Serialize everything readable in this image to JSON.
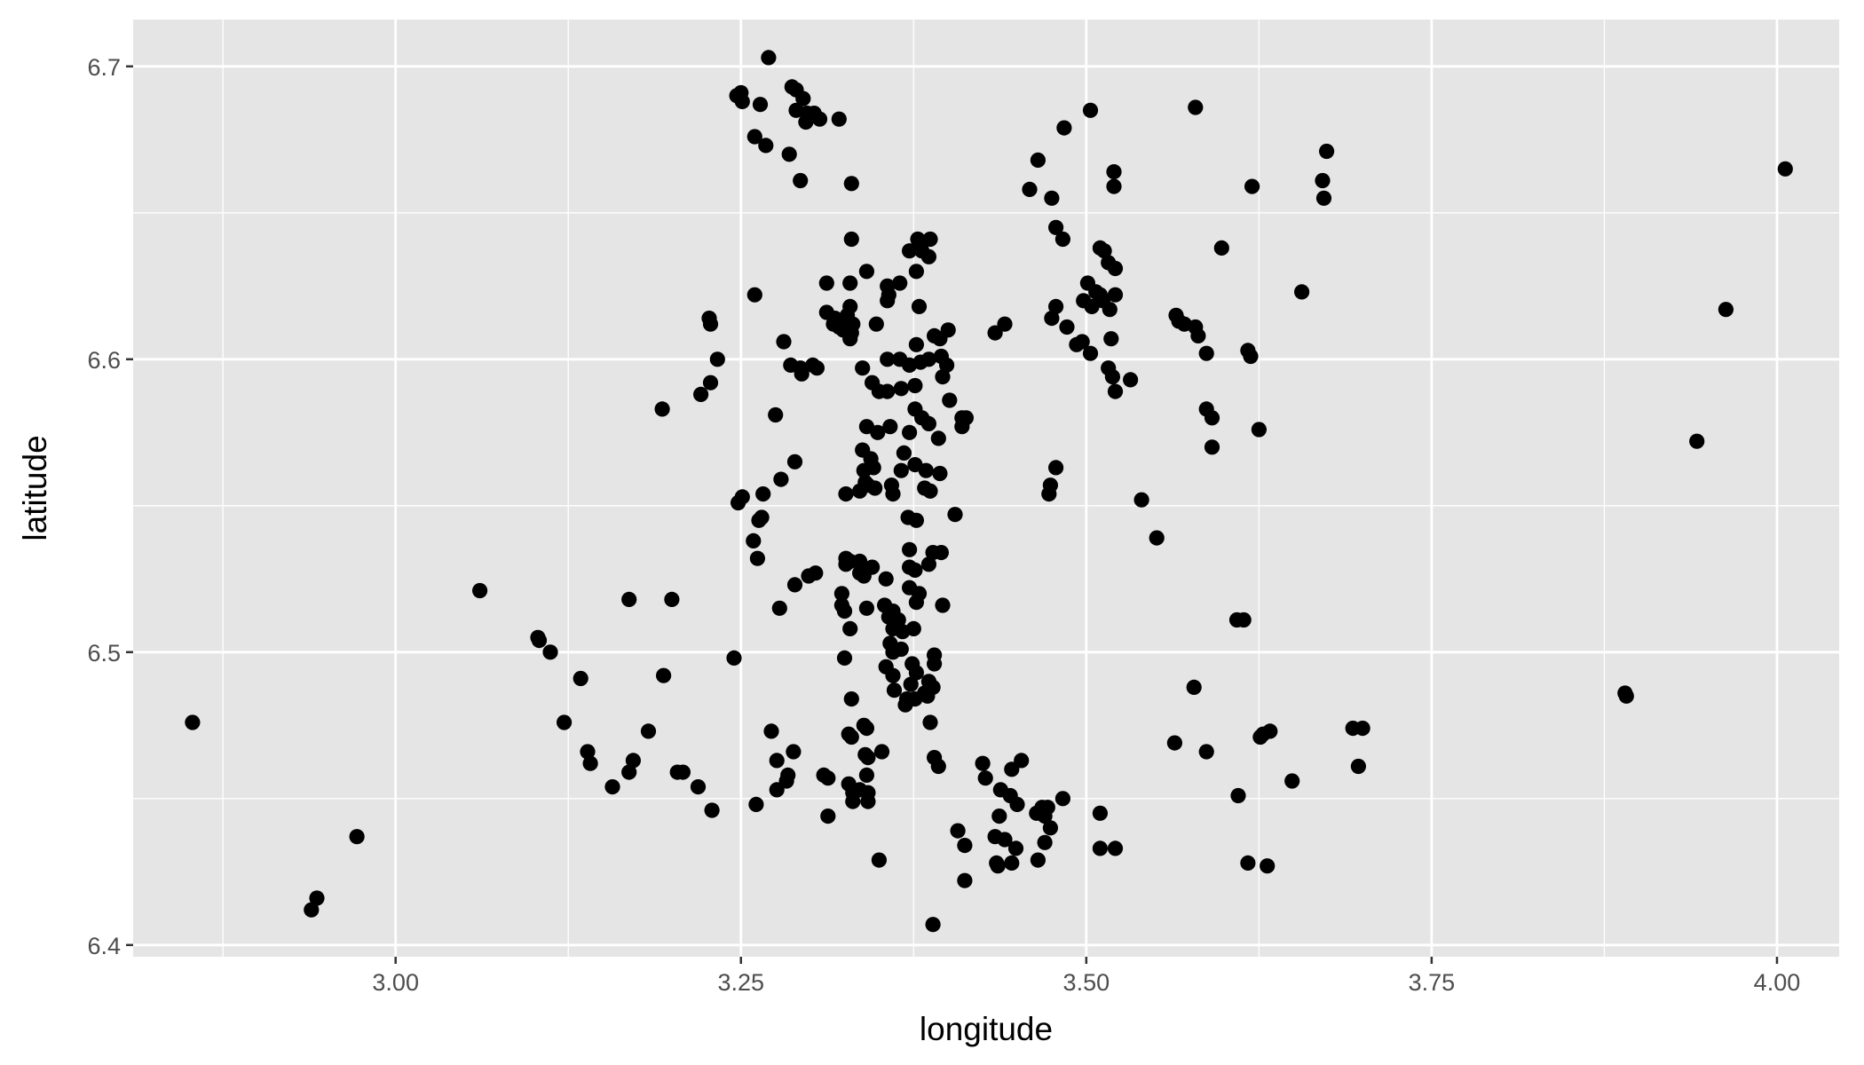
{
  "chart_data": {
    "type": "scatter",
    "title": "",
    "xlabel": "longitude",
    "ylabel": "latitude",
    "xlim": [
      2.81,
      4.045
    ],
    "ylim": [
      6.396,
      6.716
    ],
    "x_ticks": [
      3.0,
      3.25,
      3.5,
      3.75,
      4.0
    ],
    "x_tick_labels": [
      "3.00",
      "3.25",
      "3.50",
      "3.75",
      "4.00"
    ],
    "x_minor_ticks": [
      2.875,
      3.125,
      3.375,
      3.625,
      3.875
    ],
    "y_ticks": [
      6.4,
      6.5,
      6.6,
      6.7
    ],
    "y_tick_labels": [
      "6.4",
      "6.5",
      "6.6",
      "6.7"
    ],
    "y_minor_ticks": [
      6.45,
      6.55,
      6.65
    ],
    "grid": true,
    "legend": "none",
    "colors": {
      "panel": "#e5e5e5",
      "grid": "#ffffff",
      "point": "#000000",
      "tick": "#333333"
    },
    "points": [
      [
        3.27,
        6.703
      ],
      [
        3.247,
        6.69
      ],
      [
        3.25,
        6.691
      ],
      [
        3.251,
        6.688
      ],
      [
        3.264,
        6.687
      ],
      [
        3.287,
        6.693
      ],
      [
        3.29,
        6.692
      ],
      [
        3.295,
        6.689
      ],
      [
        3.29,
        6.685
      ],
      [
        3.298,
        6.684
      ],
      [
        3.303,
        6.684
      ],
      [
        3.307,
        6.682
      ],
      [
        3.297,
        6.681
      ],
      [
        3.321,
        6.682
      ],
      [
        3.26,
        6.676
      ],
      [
        3.268,
        6.673
      ],
      [
        3.285,
        6.67
      ],
      [
        3.293,
        6.661
      ],
      [
        3.33,
        6.66
      ],
      [
        3.503,
        6.685
      ],
      [
        3.579,
        6.686
      ],
      [
        3.484,
        6.679
      ],
      [
        3.674,
        6.671
      ],
      [
        3.465,
        6.668
      ],
      [
        3.52,
        6.664
      ],
      [
        3.671,
        6.661
      ],
      [
        3.62,
        6.659
      ],
      [
        3.52,
        6.659
      ],
      [
        3.459,
        6.658
      ],
      [
        3.475,
        6.655
      ],
      [
        3.672,
        6.655
      ],
      [
        4.006,
        6.665
      ],
      [
        3.33,
        6.641
      ],
      [
        3.378,
        6.641
      ],
      [
        3.387,
        6.641
      ],
      [
        3.372,
        6.637
      ],
      [
        3.381,
        6.637
      ],
      [
        3.386,
        6.635
      ],
      [
        3.478,
        6.645
      ],
      [
        3.483,
        6.641
      ],
      [
        3.51,
        6.638
      ],
      [
        3.513,
        6.637
      ],
      [
        3.516,
        6.633
      ],
      [
        3.521,
        6.631
      ],
      [
        3.598,
        6.638
      ],
      [
        3.377,
        6.63
      ],
      [
        3.341,
        6.63
      ],
      [
        3.312,
        6.626
      ],
      [
        3.329,
        6.626
      ],
      [
        3.356,
        6.625
      ],
      [
        3.365,
        6.626
      ],
      [
        3.356,
        6.62
      ],
      [
        3.357,
        6.622
      ],
      [
        3.26,
        6.622
      ],
      [
        3.501,
        6.626
      ],
      [
        3.507,
        6.623
      ],
      [
        3.51,
        6.622
      ],
      [
        3.498,
        6.62
      ],
      [
        3.504,
        6.618
      ],
      [
        3.512,
        6.62
      ],
      [
        3.521,
        6.622
      ],
      [
        3.517,
        6.617
      ],
      [
        3.656,
        6.623
      ],
      [
        3.963,
        6.617
      ],
      [
        3.227,
        6.614
      ],
      [
        3.228,
        6.612
      ],
      [
        3.312,
        6.616
      ],
      [
        3.318,
        6.614
      ],
      [
        3.323,
        6.613
      ],
      [
        3.327,
        6.615
      ],
      [
        3.317,
        6.612
      ],
      [
        3.321,
        6.611
      ],
      [
        3.324,
        6.61
      ],
      [
        3.33,
        6.609
      ],
      [
        3.329,
        6.618
      ],
      [
        3.331,
        6.612
      ],
      [
        3.329,
        6.607
      ],
      [
        3.348,
        6.612
      ],
      [
        3.379,
        6.618
      ],
      [
        3.39,
        6.608
      ],
      [
        3.394,
        6.607
      ],
      [
        3.4,
        6.61
      ],
      [
        3.478,
        6.618
      ],
      [
        3.475,
        6.614
      ],
      [
        3.486,
        6.611
      ],
      [
        3.434,
        6.609
      ],
      [
        3.441,
        6.612
      ],
      [
        3.565,
        6.615
      ],
      [
        3.567,
        6.613
      ],
      [
        3.571,
        6.612
      ],
      [
        3.579,
        6.611
      ],
      [
        3.581,
        6.608
      ],
      [
        3.233,
        6.6
      ],
      [
        3.281,
        6.606
      ],
      [
        3.286,
        6.598
      ],
      [
        3.293,
        6.597
      ],
      [
        3.302,
        6.598
      ],
      [
        3.294,
        6.595
      ],
      [
        3.305,
        6.597
      ],
      [
        3.338,
        6.597
      ],
      [
        3.356,
        6.6
      ],
      [
        3.365,
        6.6
      ],
      [
        3.377,
        6.605
      ],
      [
        3.38,
        6.599
      ],
      [
        3.386,
        6.6
      ],
      [
        3.395,
        6.601
      ],
      [
        3.399,
        6.598
      ],
      [
        3.396,
        6.594
      ],
      [
        3.372,
        6.598
      ],
      [
        3.493,
        6.605
      ],
      [
        3.497,
        6.606
      ],
      [
        3.503,
        6.602
      ],
      [
        3.518,
        6.607
      ],
      [
        3.516,
        6.597
      ],
      [
        3.519,
        6.594
      ],
      [
        3.521,
        6.589
      ],
      [
        3.532,
        6.593
      ],
      [
        3.587,
        6.602
      ],
      [
        3.617,
        6.603
      ],
      [
        3.619,
        6.601
      ],
      [
        3.228,
        6.592
      ],
      [
        3.221,
        6.588
      ],
      [
        3.345,
        6.592
      ],
      [
        3.35,
        6.589
      ],
      [
        3.356,
        6.589
      ],
      [
        3.366,
        6.59
      ],
      [
        3.376,
        6.591
      ],
      [
        3.401,
        6.586
      ],
      [
        3.193,
        6.583
      ],
      [
        3.275,
        6.581
      ],
      [
        3.376,
        6.583
      ],
      [
        3.381,
        6.58
      ],
      [
        3.386,
        6.578
      ],
      [
        3.41,
        6.58
      ],
      [
        3.413,
        6.58
      ],
      [
        3.41,
        6.577
      ],
      [
        3.587,
        6.583
      ],
      [
        3.591,
        6.58
      ],
      [
        3.625,
        6.576
      ],
      [
        3.341,
        6.577
      ],
      [
        3.349,
        6.575
      ],
      [
        3.358,
        6.577
      ],
      [
        3.372,
        6.575
      ],
      [
        3.393,
        6.573
      ],
      [
        3.368,
        6.568
      ],
      [
        3.338,
        6.569
      ],
      [
        3.344,
        6.566
      ],
      [
        3.339,
        6.562
      ],
      [
        3.346,
        6.563
      ],
      [
        3.34,
        6.558
      ],
      [
        3.347,
        6.556
      ],
      [
        3.359,
        6.557
      ],
      [
        3.366,
        6.562
      ],
      [
        3.376,
        6.564
      ],
      [
        3.384,
        6.562
      ],
      [
        3.394,
        6.561
      ],
      [
        3.36,
        6.554
      ],
      [
        3.383,
        6.556
      ],
      [
        3.387,
        6.555
      ],
      [
        3.342,
        6.557
      ],
      [
        3.336,
        6.555
      ],
      [
        3.289,
        6.565
      ],
      [
        3.279,
        6.559
      ],
      [
        3.266,
        6.554
      ],
      [
        3.251,
        6.553
      ],
      [
        3.248,
        6.551
      ],
      [
        3.326,
        6.554
      ],
      [
        3.478,
        6.563
      ],
      [
        3.474,
        6.557
      ],
      [
        3.473,
        6.554
      ],
      [
        3.54,
        6.552
      ],
      [
        3.591,
        6.57
      ],
      [
        3.942,
        6.572
      ],
      [
        3.263,
        6.545
      ],
      [
        3.265,
        6.546
      ],
      [
        3.259,
        6.538
      ],
      [
        3.262,
        6.532
      ],
      [
        3.371,
        6.546
      ],
      [
        3.377,
        6.545
      ],
      [
        3.405,
        6.547
      ],
      [
        3.372,
        6.535
      ],
      [
        3.389,
        6.534
      ],
      [
        3.395,
        6.534
      ],
      [
        3.386,
        6.53
      ],
      [
        3.372,
        6.529
      ],
      [
        3.376,
        6.528
      ],
      [
        3.326,
        6.532
      ],
      [
        3.329,
        6.531
      ],
      [
        3.336,
        6.531
      ],
      [
        3.326,
        6.53
      ],
      [
        3.345,
        6.529
      ],
      [
        3.336,
        6.527
      ],
      [
        3.355,
        6.525
      ],
      [
        3.339,
        6.526
      ],
      [
        3.299,
        6.526
      ],
      [
        3.304,
        6.527
      ],
      [
        3.289,
        6.523
      ],
      [
        3.372,
        6.522
      ],
      [
        3.379,
        6.52
      ],
      [
        3.323,
        6.52
      ],
      [
        3.323,
        6.516
      ],
      [
        3.325,
        6.514
      ],
      [
        3.341,
        6.515
      ],
      [
        3.354,
        6.516
      ],
      [
        3.36,
        6.514
      ],
      [
        3.377,
        6.517
      ],
      [
        3.396,
        6.516
      ],
      [
        3.357,
        6.512
      ],
      [
        3.364,
        6.511
      ],
      [
        3.36,
        6.508
      ],
      [
        3.367,
        6.507
      ],
      [
        3.375,
        6.508
      ],
      [
        3.329,
        6.508
      ],
      [
        3.278,
        6.515
      ],
      [
        3.169,
        6.518
      ],
      [
        3.2,
        6.518
      ],
      [
        3.061,
        6.521
      ],
      [
        3.103,
        6.505
      ],
      [
        3.104,
        6.504
      ],
      [
        3.112,
        6.5
      ],
      [
        3.551,
        6.539
      ],
      [
        3.609,
        6.511
      ],
      [
        3.614,
        6.511
      ],
      [
        3.358,
        6.503
      ],
      [
        3.36,
        6.5
      ],
      [
        3.366,
        6.501
      ],
      [
        3.325,
        6.498
      ],
      [
        3.245,
        6.498
      ],
      [
        3.194,
        6.492
      ],
      [
        3.134,
        6.491
      ],
      [
        3.355,
        6.495
      ],
      [
        3.36,
        6.492
      ],
      [
        3.374,
        6.496
      ],
      [
        3.377,
        6.493
      ],
      [
        3.39,
        6.499
      ],
      [
        3.39,
        6.496
      ],
      [
        3.373,
        6.489
      ],
      [
        3.386,
        6.49
      ],
      [
        3.389,
        6.488
      ],
      [
        3.361,
        6.487
      ],
      [
        3.37,
        6.484
      ],
      [
        3.376,
        6.484
      ],
      [
        3.383,
        6.486
      ],
      [
        3.385,
        6.485
      ],
      [
        3.33,
        6.484
      ],
      [
        3.369,
        6.482
      ],
      [
        3.578,
        6.488
      ],
      [
        3.89,
        6.486
      ],
      [
        3.891,
        6.485
      ],
      [
        2.853,
        6.476
      ],
      [
        3.122,
        6.476
      ],
      [
        3.183,
        6.473
      ],
      [
        3.272,
        6.473
      ],
      [
        3.339,
        6.475
      ],
      [
        3.341,
        6.474
      ],
      [
        3.328,
        6.472
      ],
      [
        3.33,
        6.471
      ],
      [
        3.387,
        6.476
      ],
      [
        3.564,
        6.469
      ],
      [
        3.587,
        6.466
      ],
      [
        3.626,
        6.471
      ],
      [
        3.628,
        6.472
      ],
      [
        3.633,
        6.473
      ],
      [
        3.693,
        6.474
      ],
      [
        3.7,
        6.474
      ],
      [
        3.697,
        6.461
      ],
      [
        3.139,
        6.466
      ],
      [
        3.141,
        6.462
      ],
      [
        3.172,
        6.463
      ],
      [
        3.169,
        6.459
      ],
      [
        3.157,
        6.454
      ],
      [
        3.204,
        6.459
      ],
      [
        3.208,
        6.459
      ],
      [
        3.219,
        6.454
      ],
      [
        3.229,
        6.446
      ],
      [
        3.288,
        6.466
      ],
      [
        3.276,
        6.463
      ],
      [
        3.284,
        6.458
      ],
      [
        3.283,
        6.456
      ],
      [
        3.276,
        6.453
      ],
      [
        3.261,
        6.448
      ],
      [
        3.31,
        6.458
      ],
      [
        3.313,
        6.457
      ],
      [
        3.34,
        6.465
      ],
      [
        3.342,
        6.464
      ],
      [
        3.352,
        6.466
      ],
      [
        3.341,
        6.458
      ],
      [
        3.328,
        6.455
      ],
      [
        3.331,
        6.452
      ],
      [
        3.336,
        6.453
      ],
      [
        3.342,
        6.452
      ],
      [
        3.331,
        6.449
      ],
      [
        3.342,
        6.449
      ],
      [
        3.313,
        6.444
      ],
      [
        3.39,
        6.464
      ],
      [
        3.393,
        6.461
      ],
      [
        3.425,
        6.462
      ],
      [
        3.427,
        6.457
      ],
      [
        3.453,
        6.463
      ],
      [
        3.446,
        6.46
      ],
      [
        3.438,
        6.453
      ],
      [
        3.445,
        6.451
      ],
      [
        3.45,
        6.448
      ],
      [
        3.468,
        6.447
      ],
      [
        3.472,
        6.447
      ],
      [
        3.464,
        6.445
      ],
      [
        3.483,
        6.45
      ],
      [
        3.437,
        6.444
      ],
      [
        3.474,
        6.44
      ],
      [
        3.47,
        6.444
      ],
      [
        3.51,
        6.445
      ],
      [
        3.61,
        6.451
      ],
      [
        3.649,
        6.456
      ],
      [
        3.407,
        6.439
      ],
      [
        3.412,
        6.434
      ],
      [
        3.434,
        6.437
      ],
      [
        3.441,
        6.436
      ],
      [
        3.449,
        6.433
      ],
      [
        3.47,
        6.435
      ],
      [
        3.51,
        6.433
      ],
      [
        3.521,
        6.433
      ],
      [
        3.435,
        6.428
      ],
      [
        3.436,
        6.427
      ],
      [
        3.446,
        6.428
      ],
      [
        3.465,
        6.429
      ],
      [
        3.35,
        6.429
      ],
      [
        3.617,
        6.428
      ],
      [
        3.631,
        6.427
      ],
      [
        3.412,
        6.422
      ],
      [
        2.972,
        6.437
      ],
      [
        2.943,
        6.416
      ],
      [
        2.939,
        6.412
      ],
      [
        3.389,
        6.407
      ]
    ]
  }
}
